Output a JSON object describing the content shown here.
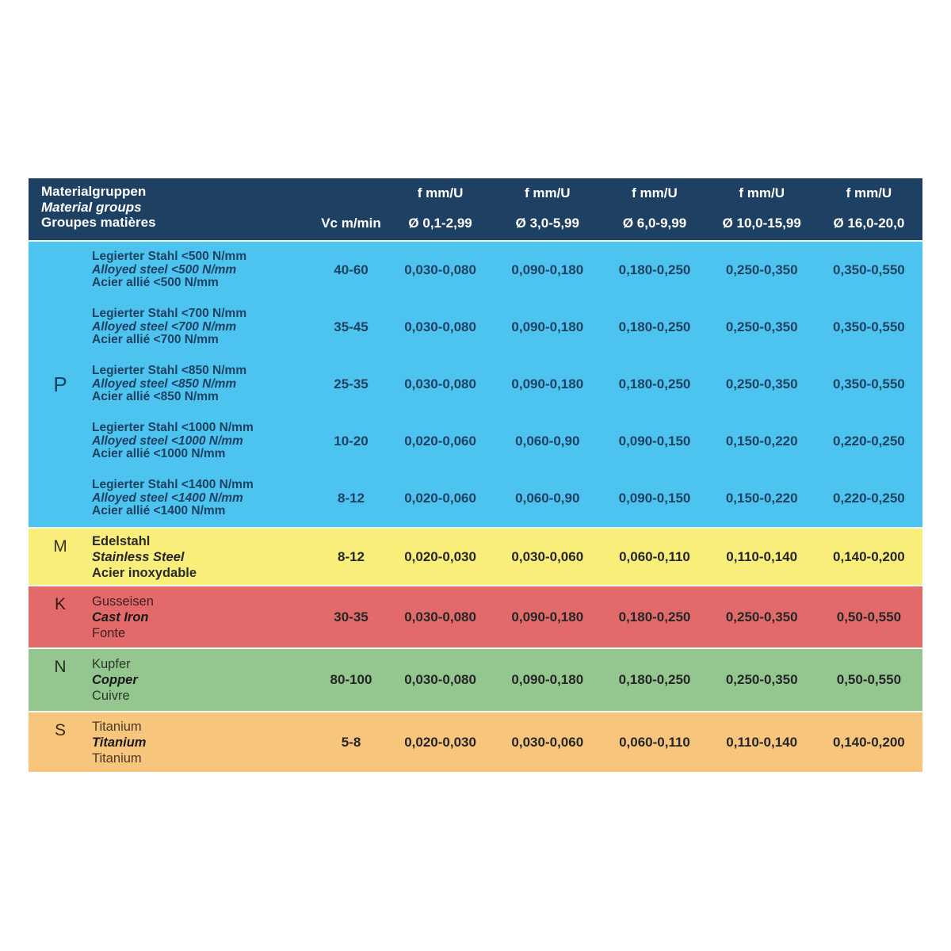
{
  "header": {
    "material_col": {
      "line1": "Materialgruppen",
      "line2": "Material groups",
      "line3": "Groupes matières"
    },
    "vc_label": "Vc m/min",
    "feed_cols": [
      {
        "top": "f mm/U",
        "bottom": "Ø 0,1-2,99"
      },
      {
        "top": "f mm/U",
        "bottom": "Ø 3,0-5,99"
      },
      {
        "top": "f mm/U",
        "bottom": "Ø 6,0-9,99"
      },
      {
        "top": "f mm/U",
        "bottom": "Ø 10,0-15,99"
      },
      {
        "top": "f mm/U",
        "bottom": "Ø 16,0-20,0"
      }
    ]
  },
  "colors": {
    "header_bg": "#1e4062",
    "header_text": "#ffffff",
    "group_p_bg": "#4dc3f0",
    "group_p_text": "#1d4161",
    "group_m_bg": "#f9ee79",
    "group_k_bg": "#e26a6a",
    "group_n_bg": "#94c690",
    "group_s_bg": "#f7c57c"
  },
  "groups": [
    {
      "letter": "P",
      "rows": [
        {
          "de": "Legierter Stahl <500 N/mm",
          "en": "Alloyed steel <500 N/mm",
          "fr": "Acier allié <500 N/mm",
          "vc": "40-60",
          "f": [
            "0,030-0,080",
            "0,090-0,180",
            "0,180-0,250",
            "0,250-0,350",
            "0,350-0,550"
          ]
        },
        {
          "de": "Legierter Stahl <700 N/mm",
          "en": "Alloyed steel <700 N/mm",
          "fr": "Acier allié <700 N/mm",
          "vc": "35-45",
          "f": [
            "0,030-0,080",
            "0,090-0,180",
            "0,180-0,250",
            "0,250-0,350",
            "0,350-0,550"
          ]
        },
        {
          "de": "Legierter Stahl <850 N/mm",
          "en": "Alloyed steel <850 N/mm",
          "fr": "Acier allié <850 N/mm",
          "vc": "25-35",
          "f": [
            "0,030-0,080",
            "0,090-0,180",
            "0,180-0,250",
            "0,250-0,350",
            "0,350-0,550"
          ]
        },
        {
          "de": "Legierter Stahl <1000 N/mm",
          "en": "Alloyed steel <1000 N/mm",
          "fr": "Acier allié <1000 N/mm",
          "vc": "10-20",
          "f": [
            "0,020-0,060",
            "0,060-0,90",
            "0,090-0,150",
            "0,150-0,220",
            "0,220-0,250"
          ]
        },
        {
          "de": "Legierter Stahl <1400 N/mm",
          "en": "Alloyed steel <1400 N/mm",
          "fr": "Acier allié <1400 N/mm",
          "vc": "8-12",
          "f": [
            "0,020-0,060",
            "0,060-0,90",
            "0,090-0,150",
            "0,150-0,220",
            "0,220-0,250"
          ]
        }
      ]
    },
    {
      "letter": "M",
      "rows": [
        {
          "de": "Edelstahl",
          "en": "Stainless Steel",
          "fr": "Acier inoxydable",
          "vc": "8-12",
          "f": [
            "0,020-0,030",
            "0,030-0,060",
            "0,060-0,110",
            "0,110-0,140",
            "0,140-0,200"
          ]
        }
      ]
    },
    {
      "letter": "K",
      "rows": [
        {
          "de": "Gusseisen",
          "en": "Cast Iron",
          "fr": "Fonte",
          "vc": "30-35",
          "f": [
            "0,030-0,080",
            "0,090-0,180",
            "0,180-0,250",
            "0,250-0,350",
            "0,50-0,550"
          ]
        }
      ]
    },
    {
      "letter": "N",
      "rows": [
        {
          "de": "Kupfer",
          "en": "Copper",
          "fr": "Cuivre",
          "vc": "80-100",
          "f": [
            "0,030-0,080",
            "0,090-0,180",
            "0,180-0,250",
            "0,250-0,350",
            "0,50-0,550"
          ]
        }
      ]
    },
    {
      "letter": "S",
      "rows": [
        {
          "de": "Titanium",
          "en": "Titanium",
          "fr": "Titanium",
          "vc": "5-8",
          "f": [
            "0,020-0,030",
            "0,030-0,060",
            "0,060-0,110",
            "0,110-0,140",
            "0,140-0,200"
          ]
        }
      ]
    }
  ]
}
